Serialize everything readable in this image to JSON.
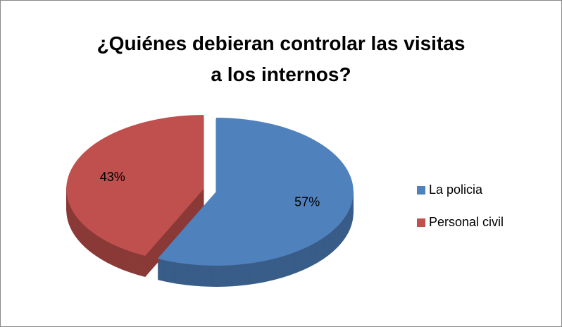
{
  "chart_data": {
    "type": "pie",
    "title": "¿Quiénes debieran controlar las visitas a los internos?",
    "categories": [
      "La policia",
      "Personal civil"
    ],
    "values": [
      57,
      43
    ],
    "value_labels": [
      "57%",
      "43%"
    ],
    "colors": [
      "#4f81bd",
      "#c0504d"
    ],
    "legend": "right",
    "exploded": true,
    "three_d": true
  }
}
